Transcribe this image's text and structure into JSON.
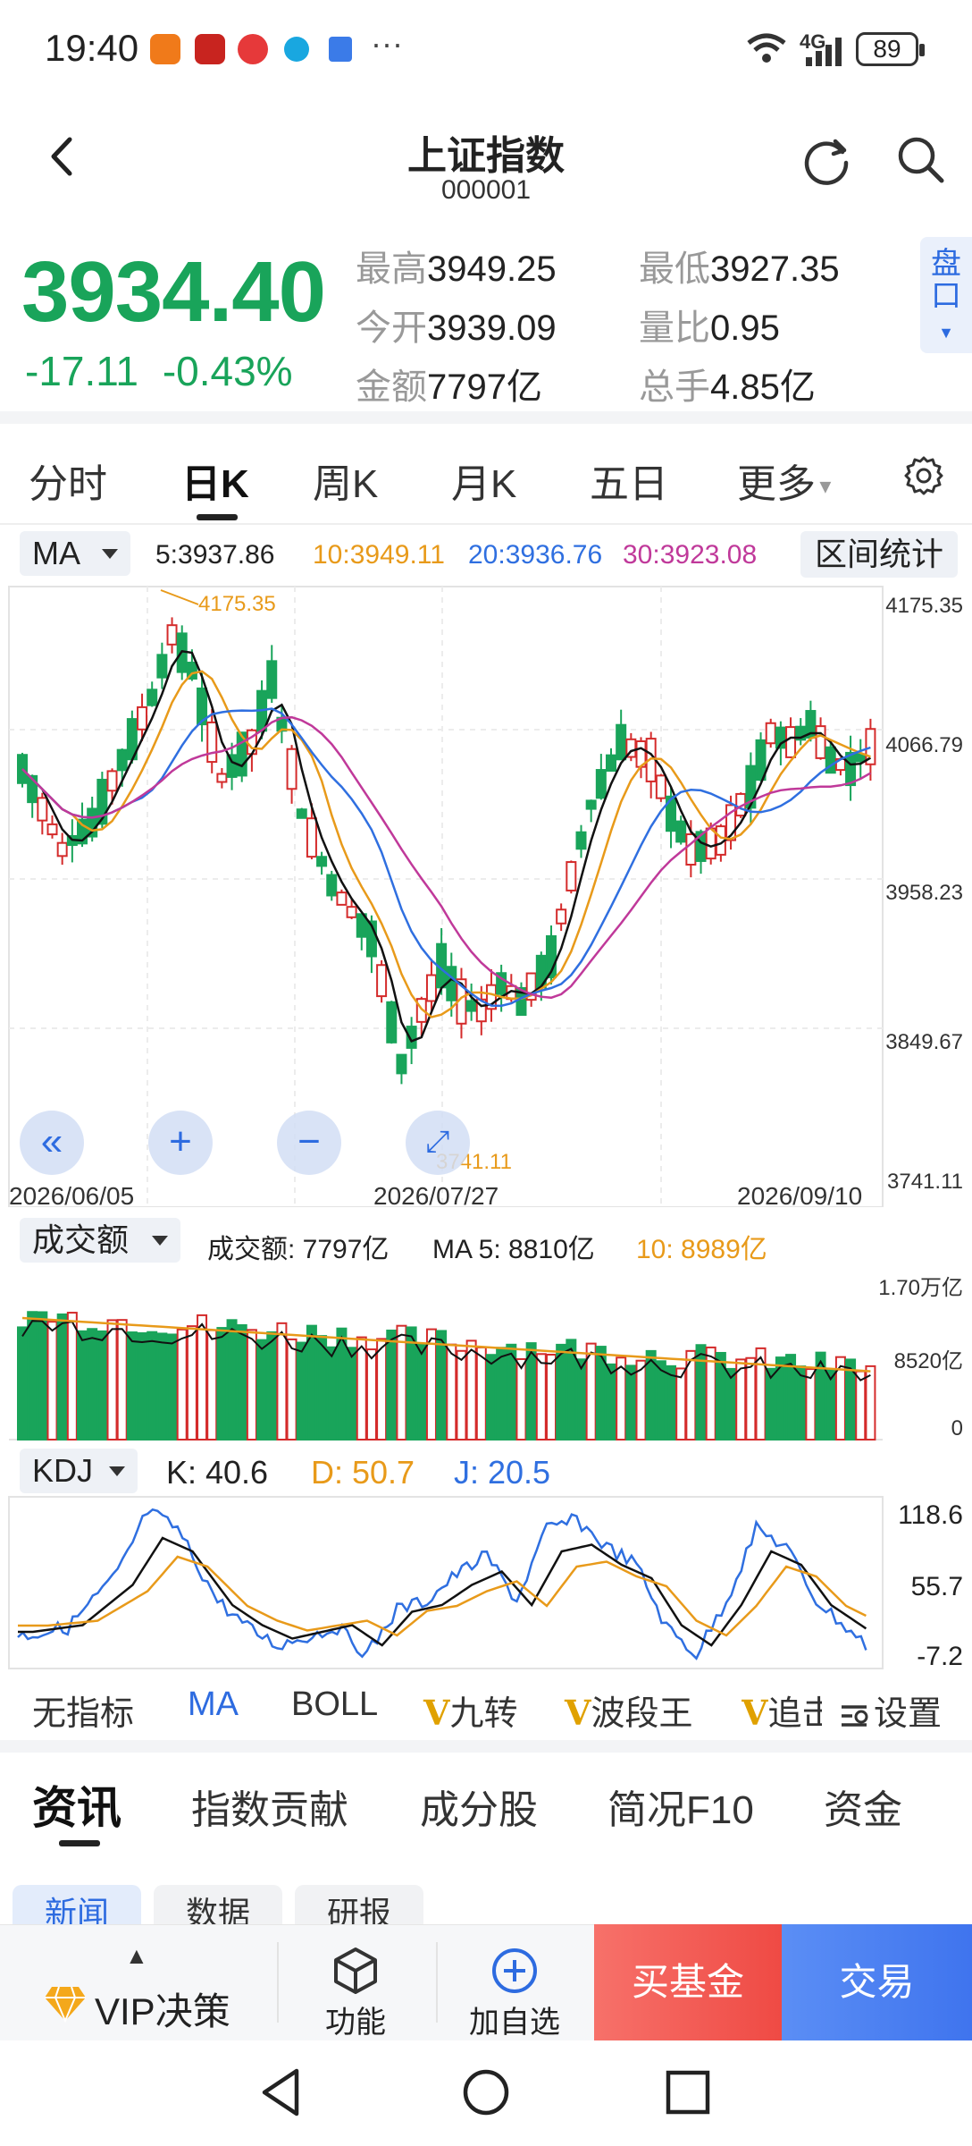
{
  "status": {
    "time": "19:40",
    "signal": "4G",
    "battery": "89"
  },
  "header": {
    "title": "上证指数",
    "code": "000001"
  },
  "quote": {
    "price": "3934.40",
    "change": "-17.11",
    "change_pct": "-0.43%",
    "high_label": "最高",
    "high": "3949.25",
    "low_label": "最低",
    "low": "3927.35",
    "open_label": "今开",
    "open": "3939.09",
    "ratio_label": "量比",
    "ratio": "0.95",
    "amount_label": "金额",
    "amount": "7797亿",
    "hands_label": "总手",
    "hands": "4.85亿",
    "pankou": "盘口"
  },
  "ktabs": [
    "分时",
    "日K",
    "周K",
    "月K",
    "五日",
    "更多"
  ],
  "ma_row": {
    "selector": "MA",
    "ma5": "5:3937.86",
    "ma10": "10:3949.11",
    "ma20": "20:3936.76",
    "ma30": "30:3923.08",
    "range_stats": "区间统计"
  },
  "kline": {
    "y_ticks": [
      "4175.35",
      "4066.79",
      "3958.23",
      "3849.67",
      "3741.11"
    ],
    "high_mark": "4175.35",
    "low_mark": "3741.11",
    "dates": [
      "2026/06/05",
      "2026/07/27",
      "2026/09/10"
    ]
  },
  "volume": {
    "selector": "成交额",
    "amount_text": "成交额: 7797亿",
    "ma5_text": "MA 5: 8810亿",
    "ma10_text": "10: 8989亿",
    "y_ticks": [
      "1.70万亿",
      "8520亿",
      "0"
    ]
  },
  "kdj": {
    "selector": "KDJ",
    "k": "K: 40.6",
    "d": "D: 50.7",
    "j": "J: 20.5",
    "y_ticks": [
      "118.6",
      "55.7",
      "-7.2"
    ]
  },
  "indicators": {
    "none": "无指标",
    "ma": "MA",
    "boll": "BOLL",
    "v1": "九转",
    "v2": "波段王",
    "v3": "追击",
    "settings": "设置"
  },
  "info_tabs": [
    "资讯",
    "指数贡献",
    "成分股",
    "简况F10",
    "资金"
  ],
  "sub_tabs": [
    "新闻",
    "数据",
    "研报"
  ],
  "bottom": {
    "vip": "VIP决策",
    "func": "功能",
    "add": "加自选",
    "buy_fund": "买基金",
    "trade": "交易"
  },
  "colors": {
    "up": "#d42b2b",
    "down": "#19a45a",
    "ma5": "#111111",
    "ma10": "#e89a1a",
    "ma20": "#2f6fe0",
    "ma30": "#c0399a"
  }
}
